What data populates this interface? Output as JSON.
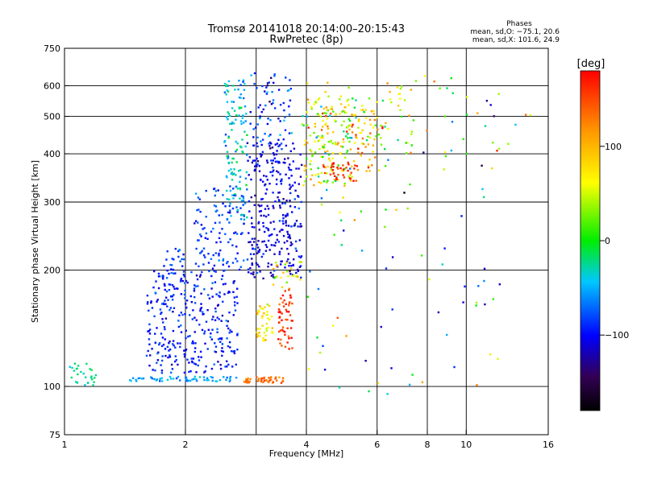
{
  "chart_data": {
    "type": "scatter",
    "title": "Tromsø 20141018 20:14:00–20:15:43",
    "subtitle": "RwPretec (8p)",
    "xlabel": "Frequency [MHz]",
    "ylabel": "Stationary phase Virtual Height [km]",
    "x_scale": "log",
    "y_scale": "log",
    "xlim": [
      1,
      16
    ],
    "ylim": [
      75,
      750
    ],
    "x_ticks": [
      1,
      2,
      4,
      6,
      8,
      10,
      16
    ],
    "x_tick_labels": [
      "1",
      "2",
      "4",
      "6",
      "8",
      "10",
      "16"
    ],
    "y_ticks": [
      75,
      100,
      200,
      300,
      400,
      500,
      600,
      750
    ],
    "y_tick_labels": [
      "75",
      "100",
      "200",
      "300",
      "400",
      "500",
      "600",
      "750"
    ],
    "x_grid": [
      1,
      2,
      3,
      4,
      6,
      8,
      10,
      16
    ],
    "y_grid": [
      100,
      200,
      300,
      400,
      500,
      600
    ],
    "grid": true,
    "phase_stats": {
      "heading": "Phases",
      "line_o": "mean, sd,O: −75.1, 20.6",
      "line_x": "mean, sd,X: 101.6, 24.9"
    },
    "colorbar": {
      "label": "[deg]",
      "range": [
        -180,
        180
      ],
      "ticks": [
        100,
        0,
        -100
      ],
      "tick_labels": [
        "100",
        "0",
        "−100"
      ],
      "colormap": "rainbow"
    },
    "clusters": [
      {
        "x": [
          1.02,
          1.2
        ],
        "y": [
          98,
          115
        ],
        "phase": -25,
        "phase_sd": 15,
        "n": 28
      },
      {
        "x": [
          1.45,
          2.7
        ],
        "y": [
          103,
          106
        ],
        "phase": -55,
        "phase_sd": 15,
        "n": 60
      },
      {
        "x": [
          1.6,
          2.7
        ],
        "y": [
          108,
          200
        ],
        "phase": -95,
        "phase_sd": 20,
        "n": 300
      },
      {
        "x": [
          1.75,
          2.0
        ],
        "y": [
          160,
          230
        ],
        "phase": -85,
        "phase_sd": 15,
        "n": 45
      },
      {
        "x": [
          2.1,
          2.8
        ],
        "y": [
          200,
          330
        ],
        "phase": -85,
        "phase_sd": 20,
        "n": 110
      },
      {
        "x": [
          2.5,
          2.85
        ],
        "y": [
          270,
          620
        ],
        "phase": -40,
        "phase_sd": 25,
        "n": 130
      },
      {
        "x": [
          2.85,
          3.9
        ],
        "y": [
          190,
          430
        ],
        "phase": -105,
        "phase_sd": 20,
        "n": 300
      },
      {
        "x": [
          2.9,
          3.7
        ],
        "y": [
          420,
          650
        ],
        "phase": -90,
        "phase_sd": 35,
        "n": 70
      },
      {
        "x": [
          2.8,
          3.5
        ],
        "y": [
          102,
          106
        ],
        "phase": 130,
        "phase_sd": 20,
        "n": 45
      },
      {
        "x": [
          3.0,
          3.3
        ],
        "y": [
          130,
          165
        ],
        "phase": 80,
        "phase_sd": 25,
        "n": 45
      },
      {
        "x": [
          3.4,
          3.7
        ],
        "y": [
          125,
          180
        ],
        "phase": 160,
        "phase_sd": 25,
        "n": 55
      },
      {
        "x": [
          3.3,
          3.9
        ],
        "y": [
          180,
          210
        ],
        "phase": 60,
        "phase_sd": 40,
        "n": 25
      },
      {
        "x": [
          3.9,
          5.2
        ],
        "y": [
          330,
          560
        ],
        "phase": 60,
        "phase_sd": 60,
        "n": 150
      },
      {
        "x": [
          4.4,
          5.4
        ],
        "y": [
          340,
          380
        ],
        "phase": 160,
        "phase_sd": 15,
        "n": 35
      },
      {
        "x": [
          5.2,
          6.2
        ],
        "y": [
          360,
          520
        ],
        "phase": 100,
        "phase_sd": 45,
        "n": 50
      },
      {
        "x": [
          4.0,
          7.4
        ],
        "y": [
          400,
          620
        ],
        "phase": 40,
        "phase_sd": 70,
        "n": 90
      },
      {
        "x": [
          4.0,
          12.5
        ],
        "y": [
          95,
          400
        ],
        "phase": -10,
        "phase_sd": 120,
        "n": 75
      },
      {
        "x": [
          7.0,
          15.0
        ],
        "y": [
          400,
          640
        ],
        "phase": 20,
        "phase_sd": 110,
        "n": 30
      }
    ]
  }
}
